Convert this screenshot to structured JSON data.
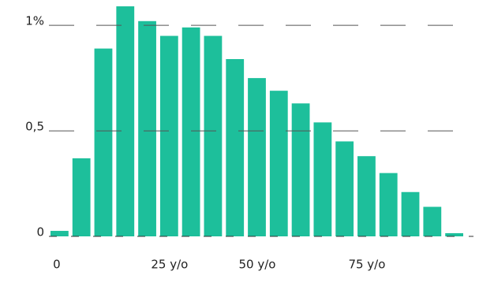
{
  "chart_data": {
    "type": "bar",
    "categories": [
      "0",
      null,
      null,
      null,
      null,
      "25 y/o",
      null,
      null,
      null,
      "50 y/o",
      null,
      null,
      null,
      null,
      "75 y/o",
      null,
      null,
      null,
      null
    ],
    "values": [
      0.026,
      0.37,
      0.89,
      1.09,
      1.02,
      0.95,
      0.99,
      0.95,
      0.84,
      0.75,
      0.69,
      0.63,
      0.54,
      0.45,
      0.38,
      0.3,
      0.21,
      0.14,
      0.015
    ],
    "color": "#1dbf9b",
    "ylim": [
      0,
      1.12
    ],
    "yticks": [
      0,
      {
        "value": 0.5,
        "label": "0,5"
      },
      {
        "value": 1,
        "label": "1%"
      }
    ],
    "grid": true
  }
}
